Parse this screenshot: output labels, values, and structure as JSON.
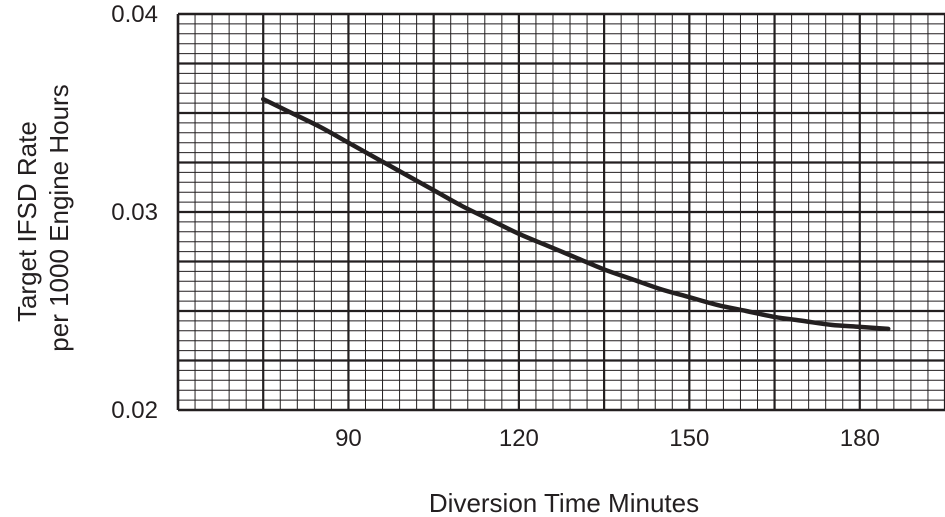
{
  "chart_data": {
    "type": "line",
    "title": "",
    "xlabel": "Diversion Time Minutes",
    "ylabel_lines": [
      "Target IFSD Rate",
      "per 1000 Engine Hours"
    ],
    "xlim": [
      60,
      195
    ],
    "ylim": [
      0.02,
      0.04
    ],
    "x_ticks": [
      90,
      120,
      150,
      180
    ],
    "x_tick_labels": [
      "90",
      "120",
      "150",
      "180"
    ],
    "y_ticks": [
      0.02,
      0.03,
      0.04
    ],
    "y_tick_labels": [
      "0.02",
      "0.03",
      "0.04"
    ],
    "grid": true,
    "legend": "none",
    "series": [
      {
        "x": [
          75,
          80,
          85,
          90,
          95,
          100,
          105,
          110,
          115,
          120,
          125,
          130,
          135,
          140,
          145,
          150,
          155,
          160,
          165,
          170,
          175,
          180,
          185
        ],
        "y": [
          0.0357,
          0.035,
          0.0343,
          0.0335,
          0.0327,
          0.0319,
          0.0311,
          0.0303,
          0.0296,
          0.0289,
          0.0283,
          0.0277,
          0.0271,
          0.0266,
          0.0261,
          0.0257,
          0.0253,
          0.025,
          0.0247,
          0.0245,
          0.0243,
          0.0242,
          0.0241
        ]
      }
    ],
    "colors": {
      "grid": "#231f20",
      "line": "#231f20",
      "text": "#231f20"
    }
  }
}
